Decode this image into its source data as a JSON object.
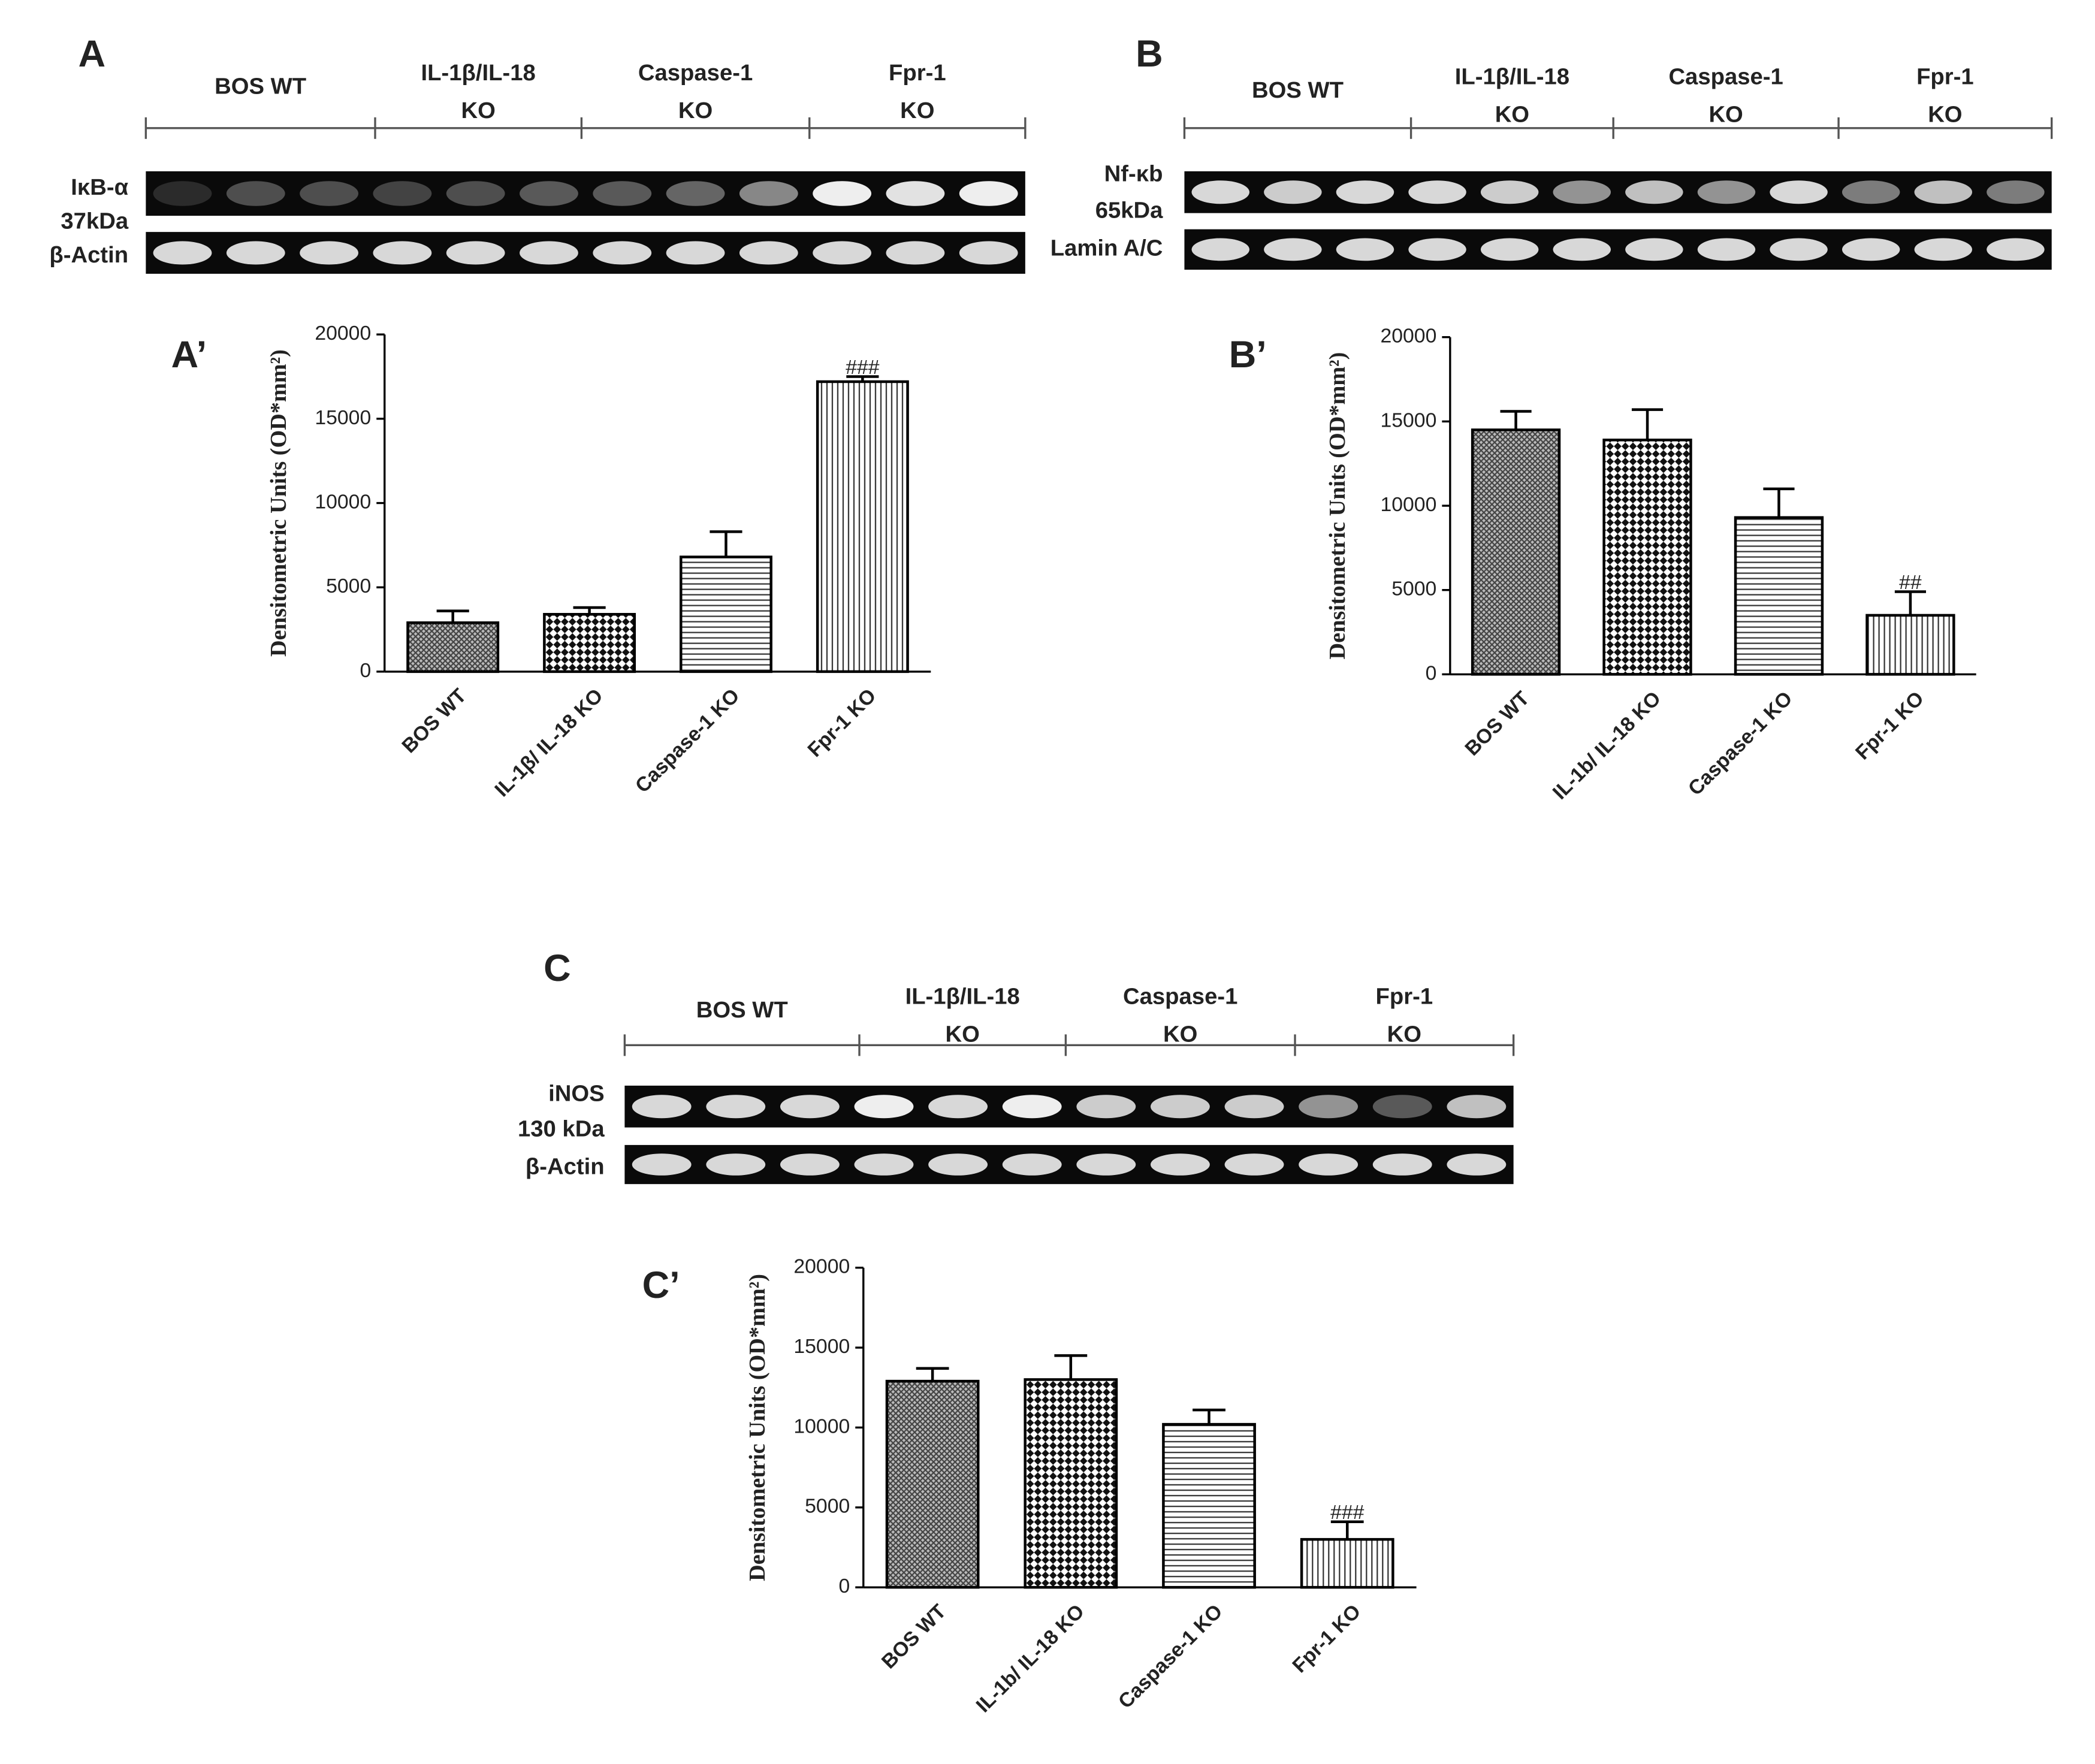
{
  "blots": [
    {
      "panel": "A",
      "groups": [
        [
          "BOS WT"
        ],
        [
          "IL-1β/IL-18",
          "KO"
        ],
        [
          "Caspase-1",
          "KO"
        ],
        [
          "Fpr-1",
          "KO"
        ]
      ],
      "rows": [
        [
          "IκB-α",
          "37kDa"
        ],
        [
          "β-Actin"
        ]
      ]
    },
    {
      "panel": "B",
      "groups": [
        [
          "BOS WT"
        ],
        [
          "IL-1β/IL-18",
          "KO"
        ],
        [
          "Caspase-1",
          "KO"
        ],
        [
          "Fpr-1",
          "KO"
        ]
      ],
      "rows": [
        [
          "Nf-κb",
          "65kDa"
        ],
        [
          "Lamin A/C"
        ]
      ]
    },
    {
      "panel": "C",
      "groups": [
        [
          "BOS WT"
        ],
        [
          "IL-1β/IL-18",
          "KO"
        ],
        [
          "Caspase-1",
          "KO"
        ],
        [
          "Fpr-1",
          "KO"
        ]
      ],
      "rows": [
        [
          "iNOS",
          "130 kDa"
        ],
        [
          "β-Actin"
        ]
      ]
    }
  ],
  "chart_data": [
    {
      "type": "bar",
      "panel": "A’",
      "ylabel": "Densitometric Units (OD*mm²)",
      "categories": [
        "BOS WT",
        "IL-1β/ IL-18 KO",
        "Caspase-1 KO",
        "Fpr-1 KO"
      ],
      "values": [
        2900,
        3400,
        6800,
        17200
      ],
      "errors": [
        700,
        400,
        1500,
        300
      ],
      "annotations": [
        null,
        null,
        null,
        "###"
      ],
      "patterns": [
        "crosshatch",
        "checker",
        "hlines",
        "vlines"
      ],
      "color": "#000000",
      "ylim": [
        0,
        20000
      ],
      "yticks": [
        0,
        5000,
        10000,
        15000,
        20000
      ]
    },
    {
      "type": "bar",
      "panel": "B’",
      "ylabel": "Densitometric Units (OD*mm²)",
      "categories": [
        "BOS WT",
        "IL-1b/ IL-18 KO",
        "Caspase-1 KO",
        "Fpr-1 KO"
      ],
      "values": [
        14500,
        13900,
        9300,
        3500
      ],
      "errors": [
        1100,
        1800,
        1700,
        1400
      ],
      "annotations": [
        null,
        null,
        null,
        "##"
      ],
      "patterns": [
        "crosshatch",
        "checker",
        "hlines",
        "vlines"
      ],
      "color": "#000000",
      "ylim": [
        0,
        20000
      ],
      "yticks": [
        0,
        5000,
        10000,
        15000,
        20000
      ]
    },
    {
      "type": "bar",
      "panel": "C’",
      "ylabel": "Densitometric Units (OD*mm²)",
      "categories": [
        "BOS WT",
        "IL-1b/ IL-18 KO",
        "Caspase-1 KO",
        "Fpr-1 KO"
      ],
      "values": [
        12900,
        13000,
        10200,
        3000
      ],
      "errors": [
        800,
        1500,
        900,
        1100
      ],
      "annotations": [
        null,
        null,
        null,
        "###"
      ],
      "patterns": [
        "crosshatch",
        "checker",
        "hlines",
        "vlines"
      ],
      "color": "#000000",
      "ylim": [
        0,
        20000
      ],
      "yticks": [
        0,
        5000,
        10000,
        15000,
        20000
      ]
    }
  ]
}
